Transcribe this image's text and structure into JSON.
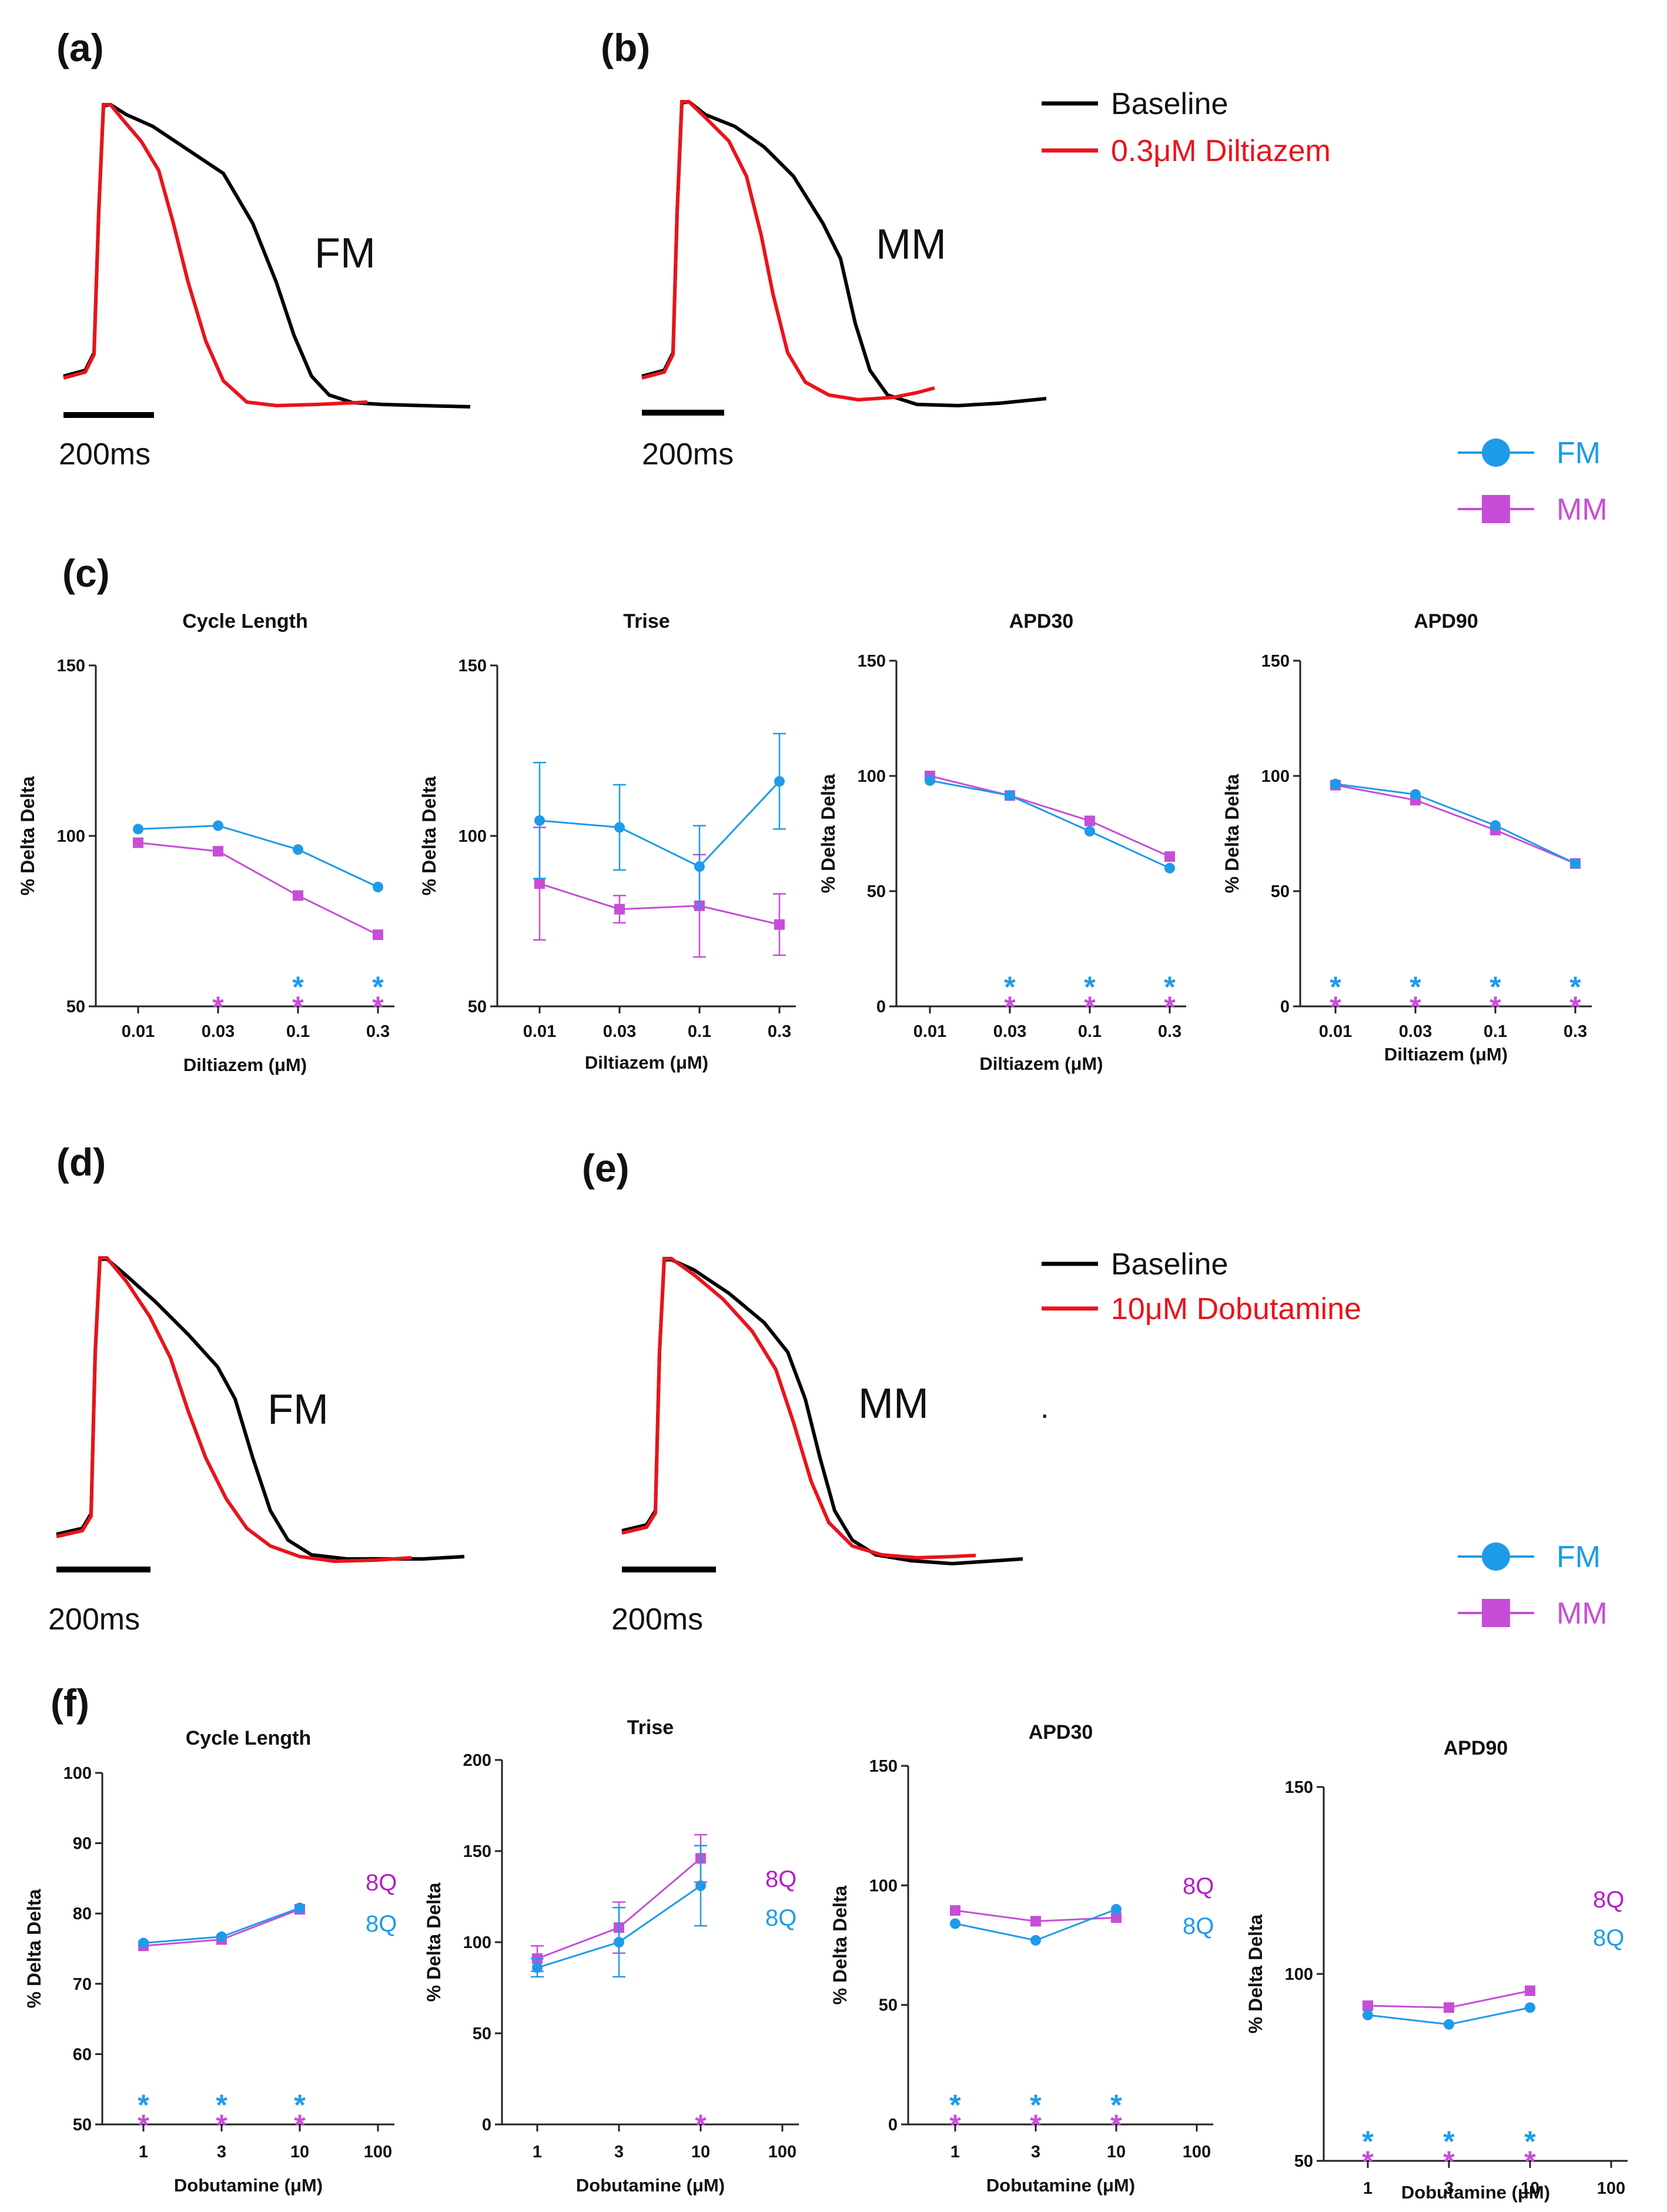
{
  "colors": {
    "fm": "#1e9be8",
    "mm": "#c64ed7",
    "baseline": "#000000",
    "drug": "#e8141b",
    "q8_mm": "#b61ec8",
    "q8_fm": "#1e9be8"
  },
  "panel_labels": {
    "a": "(a)",
    "b": "(b)",
    "c": "(c)",
    "d": "(d)",
    "e": "(e)",
    "f": "(f)"
  },
  "traces": {
    "diltiazem": {
      "legend_baseline": "Baseline",
      "legend_drug": "0.3μM Diltiazem",
      "fm_label": "FM",
      "mm_label": "MM",
      "scale_a": "200ms",
      "scale_b": "200ms"
    },
    "dobutamine": {
      "legend_baseline": "Baseline",
      "legend_drug": "10μM Dobutamine",
      "fm_label": "FM",
      "mm_label": "MM",
      "scale_d": "200ms",
      "scale_e": "200ms",
      "stray_mark": "."
    }
  },
  "legend_top": {
    "fm": "FM",
    "mm": "MM"
  },
  "legend_bottom": {
    "fm": "FM",
    "mm": "MM"
  },
  "chart_data": [
    {
      "id": "c1",
      "type": "line",
      "title": "Cycle Length",
      "xlabel": "Diltiazem (μM)",
      "ylabel": "% Delta Delta",
      "categories": [
        "0.01",
        "0.03",
        "0.1",
        "0.3"
      ],
      "ylim": [
        50,
        150
      ],
      "yticks": [
        50,
        100,
        150
      ],
      "series": [
        {
          "name": "FM",
          "values": [
            102,
            103,
            96,
            85
          ]
        },
        {
          "name": "MM",
          "values": [
            98,
            95.5,
            82.5,
            71
          ]
        }
      ],
      "stars": [
        {
          "series": "MM",
          "index": 1,
          "text": "*"
        },
        {
          "series": "FM",
          "index": 2,
          "text": "*"
        },
        {
          "series": "MM",
          "index": 2,
          "text": "*"
        },
        {
          "series": "FM",
          "index": 3,
          "text": "*"
        },
        {
          "series": "MM",
          "index": 3,
          "text": "*"
        }
      ]
    },
    {
      "id": "c2",
      "type": "line",
      "title": "Trise",
      "xlabel": "Diltiazem (μM)",
      "ylabel": "% Delta Delta",
      "categories": [
        "0.01",
        "0.03",
        "0.1",
        "0.3"
      ],
      "ylim": [
        50,
        150
      ],
      "yticks": [
        50,
        100,
        150
      ],
      "series": [
        {
          "name": "FM",
          "values": [
            104.5,
            102.5,
            91,
            116
          ],
          "errors": [
            17,
            12.5,
            12,
            14
          ]
        },
        {
          "name": "MM",
          "values": [
            86,
            78.5,
            79.5,
            74
          ],
          "errors": [
            16.5,
            4,
            15,
            9
          ]
        }
      ],
      "stars": []
    },
    {
      "id": "c3",
      "type": "line",
      "title": "APD30",
      "xlabel": "Diltiazem  (μM)",
      "ylabel": "% Delta Delta",
      "categories": [
        "0.01",
        "0.03",
        "0.1",
        "0.3"
      ],
      "ylim": [
        0,
        150
      ],
      "yticks": [
        0,
        50,
        100,
        150
      ],
      "series": [
        {
          "name": "FM",
          "values": [
            98,
            91.5,
            76,
            60
          ]
        },
        {
          "name": "MM",
          "values": [
            100,
            91.5,
            80.5,
            65
          ]
        }
      ],
      "stars": [
        {
          "series": "FM",
          "index": 1,
          "text": "*"
        },
        {
          "series": "MM",
          "index": 1,
          "text": "*"
        },
        {
          "series": "FM",
          "index": 2,
          "text": "*"
        },
        {
          "series": "MM",
          "index": 2,
          "text": "*"
        },
        {
          "series": "FM",
          "index": 3,
          "text": "*"
        },
        {
          "series": "MM",
          "index": 3,
          "text": "*"
        }
      ]
    },
    {
      "id": "c4",
      "type": "line",
      "title": "APD90",
      "xlabel": "Diltiazem  (μM)",
      "ylabel": "% Delta Delta",
      "categories": [
        "0.01",
        "0.03",
        "0.1",
        "0.3"
      ],
      "ylim": [
        0,
        150
      ],
      "yticks": [
        0,
        50,
        100,
        150
      ],
      "series": [
        {
          "name": "FM",
          "values": [
            96.5,
            92,
            78.5,
            62
          ]
        },
        {
          "name": "MM",
          "values": [
            96,
            89.5,
            76.5,
            62
          ]
        }
      ],
      "stars": [
        {
          "series": "FM",
          "index": 0,
          "text": "*"
        },
        {
          "series": "MM",
          "index": 0,
          "text": "*"
        },
        {
          "series": "FM",
          "index": 1,
          "text": "*"
        },
        {
          "series": "MM",
          "index": 1,
          "text": "*"
        },
        {
          "series": "FM",
          "index": 2,
          "text": "*"
        },
        {
          "series": "MM",
          "index": 2,
          "text": "*"
        },
        {
          "series": "FM",
          "index": 3,
          "text": "*"
        },
        {
          "series": "MM",
          "index": 3,
          "text": "*"
        }
      ]
    },
    {
      "id": "f1",
      "type": "line",
      "title": "Cycle Length",
      "xlabel": "Dobutamine (μM)",
      "ylabel": "% Delta Delta",
      "categories": [
        "1",
        "3",
        "10",
        "100"
      ],
      "ylim": [
        50,
        100
      ],
      "yticks": [
        50,
        60,
        70,
        80,
        90,
        100
      ],
      "series": [
        {
          "name": "FM",
          "values": [
            75.8,
            76.7,
            80.8,
            null
          ]
        },
        {
          "name": "MM",
          "values": [
            75.4,
            76.3,
            80.6,
            null
          ]
        }
      ],
      "q8": [
        "8Q",
        "8Q"
      ],
      "stars": [
        {
          "series": "FM",
          "index": 0,
          "text": "*"
        },
        {
          "series": "MM",
          "index": 0,
          "text": "*"
        },
        {
          "series": "FM",
          "index": 1,
          "text": "*"
        },
        {
          "series": "MM",
          "index": 1,
          "text": "*"
        },
        {
          "series": "FM",
          "index": 2,
          "text": "*"
        },
        {
          "series": "MM",
          "index": 2,
          "text": "*"
        }
      ]
    },
    {
      "id": "f2",
      "type": "line",
      "title": "Trise",
      "xlabel": "Dobutamine (μM)",
      "ylabel": "% Delta Delta",
      "categories": [
        "1",
        "3",
        "10",
        "100"
      ],
      "ylim": [
        0,
        200
      ],
      "yticks": [
        0,
        50,
        100,
        150,
        200
      ],
      "series": [
        {
          "name": "FM",
          "values": [
            86,
            100,
            131,
            null
          ],
          "errors": [
            5,
            19,
            22,
            null
          ]
        },
        {
          "name": "MM",
          "values": [
            91,
            108,
            146,
            null
          ],
          "errors": [
            7,
            14,
            13,
            null
          ]
        }
      ],
      "q8": [
        "8Q",
        "8Q"
      ],
      "stars": [
        {
          "series": "MM",
          "index": 2,
          "text": "*"
        }
      ]
    },
    {
      "id": "f3",
      "type": "line",
      "title": "APD30",
      "xlabel": "Dobutamine (μM)",
      "ylabel": "% Delta Delta",
      "categories": [
        "1",
        "3",
        "10",
        "100"
      ],
      "ylim": [
        0,
        150
      ],
      "yticks": [
        0,
        50,
        100,
        150
      ],
      "series": [
        {
          "name": "FM",
          "values": [
            84,
            77,
            90,
            null
          ]
        },
        {
          "name": "MM",
          "values": [
            89.5,
            85,
            86.5,
            null
          ]
        }
      ],
      "q8": [
        "8Q",
        "8Q"
      ],
      "stars": [
        {
          "series": "FM",
          "index": 0,
          "text": "*"
        },
        {
          "series": "MM",
          "index": 0,
          "text": "*"
        },
        {
          "series": "FM",
          "index": 1,
          "text": "*"
        },
        {
          "series": "MM",
          "index": 1,
          "text": "*"
        },
        {
          "series": "FM",
          "index": 2,
          "text": "*"
        },
        {
          "series": "MM",
          "index": 2,
          "text": "*"
        }
      ]
    },
    {
      "id": "f4",
      "type": "line",
      "title": "APD90",
      "xlabel": "Dobutamine (μM)",
      "ylabel": "% Delta Delta",
      "categories": [
        "1",
        "3",
        "10",
        "100"
      ],
      "ylim": [
        50,
        150
      ],
      "yticks": [
        50,
        100,
        150
      ],
      "series": [
        {
          "name": "FM",
          "values": [
            89,
            86.5,
            91,
            null
          ]
        },
        {
          "name": "MM",
          "values": [
            91.5,
            91,
            95.5,
            null
          ]
        }
      ],
      "q8": [
        "8Q",
        "8Q"
      ],
      "stars": [
        {
          "series": "FM",
          "index": 0,
          "text": "*"
        },
        {
          "series": "MM",
          "index": 0,
          "text": "*"
        },
        {
          "series": "FM",
          "index": 1,
          "text": "*"
        },
        {
          "series": "MM",
          "index": 1,
          "text": "*"
        },
        {
          "series": "FM",
          "index": 2,
          "text": "*"
        },
        {
          "series": "MM",
          "index": 2,
          "text": "*"
        }
      ]
    }
  ]
}
